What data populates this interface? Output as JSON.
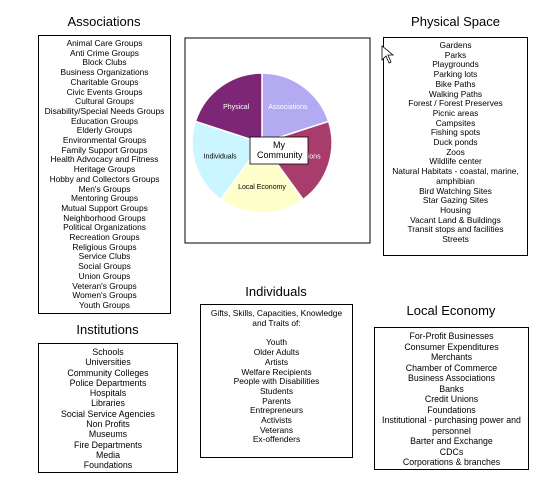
{
  "associations": {
    "title": "Associations",
    "items": [
      "Animal Care Groups",
      "Anti Crime Groups",
      "Block Clubs",
      "Business Organizations",
      "Charitable Groups",
      "Civic Events Groups",
      "Cultural Groups",
      "Disability/Special Needs Groups",
      "Education Groups",
      "Elderly Groups",
      "Environmental Groups",
      "Family Support Groups",
      "Health Advocacy and Fitness",
      "Heritage Groups",
      "Hobby and Collectors Groups",
      "Men's Groups",
      "Mentoring Groups",
      "Mutual Support Groups",
      "Neighborhood Groups",
      "Political Organizations",
      "Recreation Groups",
      "Religious Groups",
      "Service Clubs",
      "Social Groups",
      "Union Groups",
      "Veteran's Groups",
      "Women's Groups",
      "Youth Groups"
    ]
  },
  "physical_space": {
    "title": "Physical Space",
    "items": [
      "Gardens",
      "Parks",
      "Playgrounds",
      "Parking lots",
      "Bike Paths",
      "Walking Paths",
      "Forest / Forest Preserves",
      "Picnic areas",
      "Campsites",
      "Fishing spots",
      "Duck ponds",
      "Zoos",
      "Wildlife center",
      "Natural Habitats - coastal, marine, amphibian",
      "Bird Watching Sites",
      "Star Gazing Sites",
      "Housing",
      "Vacant Land & Buildings",
      "Transit stops and facilities",
      "Streets"
    ]
  },
  "pie": {
    "center": "My Community",
    "segments": [
      "Associations",
      "Institutions",
      "Local Economy",
      "Individuals",
      "Physical"
    ]
  },
  "individuals": {
    "title": "Individuals",
    "intro": "Gifts, Skills, Capacities, Knowledge and Traits of:",
    "items": [
      "Youth",
      "Older Adults",
      "Artists",
      "Welfare Recipients",
      "People with Disabilities",
      "Students",
      "Parents",
      "Entrepreneurs",
      "Activists",
      "Veterans",
      "Ex-offenders"
    ]
  },
  "institutions": {
    "title": "Institutions",
    "items": [
      "Schools",
      "Universities",
      "Community Colleges",
      "Police Departments",
      "Hospitals",
      "Libraries",
      "Social Service Agencies",
      "Non Profits",
      "Museums",
      "Fire Departments",
      "Media",
      "Foundations"
    ]
  },
  "local_economy": {
    "title": "Local Economy",
    "items": [
      "For-Profit Businesses",
      "Consumer Expenditures",
      "Merchants",
      "Chamber of Commerce",
      "Business Associations",
      "Banks",
      "Credit Unions",
      "Foundations",
      "Institutional - purchasing power and personnel",
      "Barter and Exchange",
      "CDCs",
      "Corporations & branches"
    ]
  }
}
